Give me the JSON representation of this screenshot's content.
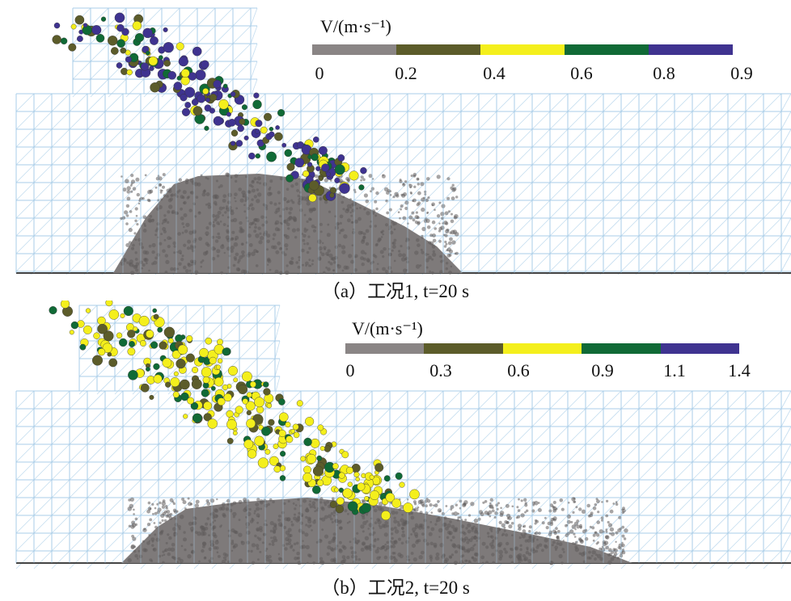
{
  "panels": [
    {
      "id": "a",
      "caption": "（a）工况1, t=20 s",
      "legend": {
        "title": "V/(m·s⁻¹)",
        "ticks": [
          "0",
          "0.2",
          "0.4",
          "0.6",
          "0.8",
          "0.9"
        ],
        "colors": [
          "#8a8585",
          "#5c5c2a",
          "#f4ef1c",
          "#106a36",
          "#3f3390"
        ]
      }
    },
    {
      "id": "b",
      "caption": "（b）工况2, t=20 s",
      "legend": {
        "title": "V/(m·s⁻¹)",
        "ticks": [
          "0",
          "0.3",
          "0.6",
          "0.9",
          "1.1",
          "1.4"
        ],
        "colors": [
          "#8a8585",
          "#5c5c2a",
          "#f4ef1c",
          "#106a36",
          "#3f3390"
        ]
      }
    }
  ],
  "colors": {
    "mesh": "#a9cde8",
    "ground": "#444444",
    "pile": "#7e7a7a"
  }
}
